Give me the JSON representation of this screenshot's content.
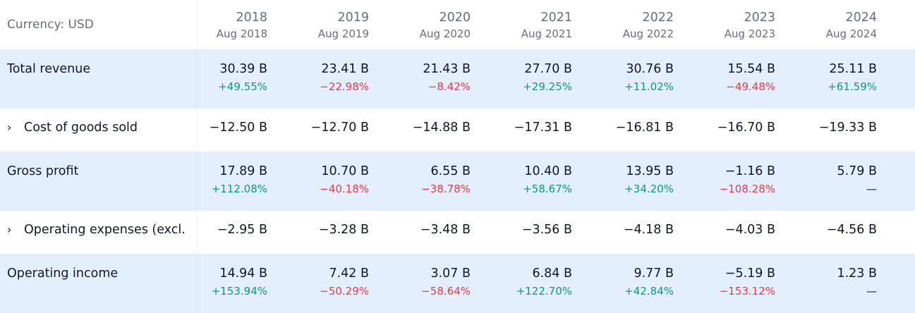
{
  "currency_label": "Currency: USD",
  "periods": [
    {
      "year": "2018",
      "date": "Aug 2018"
    },
    {
      "year": "2019",
      "date": "Aug 2019"
    },
    {
      "year": "2020",
      "date": "Aug 2020"
    },
    {
      "year": "2021",
      "date": "Aug 2021"
    },
    {
      "year": "2022",
      "date": "Aug 2022"
    },
    {
      "year": "2023",
      "date": "Aug 2023"
    },
    {
      "year": "2024",
      "date": "Aug 2024"
    }
  ],
  "rows": [
    {
      "label": "Total revenue",
      "expandable": false,
      "highlight": true,
      "values": [
        "30.39 B",
        "23.41 B",
        "21.43 B",
        "27.70 B",
        "30.76 B",
        "15.54 B",
        "25.11 B"
      ],
      "changes": [
        "+49.55%",
        "−22.98%",
        "−8.42%",
        "+29.25%",
        "+11.02%",
        "−49.48%",
        "+61.59%"
      ]
    },
    {
      "label": "Cost of goods sold",
      "expandable": true,
      "highlight": false,
      "values": [
        "−12.50 B",
        "−12.70 B",
        "−14.88 B",
        "−17.31 B",
        "−16.81 B",
        "−16.70 B",
        "−19.33 B"
      ]
    },
    {
      "label": "Gross profit",
      "expandable": false,
      "highlight": true,
      "values": [
        "17.89 B",
        "10.70 B",
        "6.55 B",
        "10.40 B",
        "13.95 B",
        "−1.16 B",
        "5.79 B"
      ],
      "changes": [
        "+112.08%",
        "−40.18%",
        "−38.78%",
        "+58.67%",
        "+34.20%",
        "−108.28%",
        "—"
      ]
    },
    {
      "label": "Operating expenses (excl.",
      "expandable": true,
      "highlight": false,
      "values": [
        "−2.95 B",
        "−3.28 B",
        "−3.48 B",
        "−3.56 B",
        "−4.18 B",
        "−4.03 B",
        "−4.56 B"
      ]
    },
    {
      "label": "Operating income",
      "expandable": false,
      "highlight": true,
      "values": [
        "14.94 B",
        "7.42 B",
        "3.07 B",
        "6.84 B",
        "9.77 B",
        "−5.19 B",
        "1.23 B"
      ],
      "changes": [
        "+153.94%",
        "−50.29%",
        "−58.64%",
        "+122.70%",
        "+42.84%",
        "−153.12%",
        "—"
      ]
    }
  ],
  "icons": {
    "expand": "›"
  },
  "colors": {
    "positive": "#089981",
    "negative": "#f23645",
    "highlight_row": "#e3effd"
  }
}
